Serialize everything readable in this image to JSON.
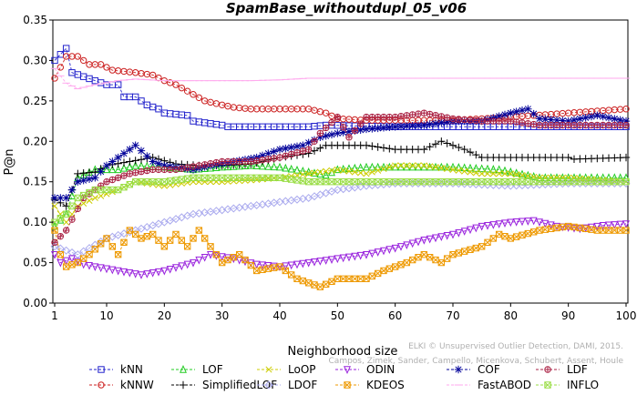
{
  "chart_data": {
    "type": "line",
    "title": "SpamBase_withoutdupl_05_v06",
    "xlabel": "Neighborhood size",
    "ylabel": "P@n",
    "xlim": [
      1,
      100
    ],
    "ylim": [
      0,
      0.35
    ],
    "x_ticks": [
      1,
      10,
      20,
      30,
      40,
      50,
      60,
      70,
      80,
      90,
      100
    ],
    "y_ticks": [
      "0.00",
      "0.05",
      "0.10",
      "0.15",
      "0.20",
      "0.25",
      "0.30",
      "0.35"
    ],
    "grid": false,
    "legend_position": "bottom",
    "credit": "ELKI © Unsupervised Outlier Detection, DAMI, 2015. Campos, Zimek, Sander, Campello, Micenkova, Schubert, Assent, Houle",
    "series": [
      {
        "name": "kNN",
        "color": "#2222cc",
        "marker": "square",
        "line": "dash",
        "points": [
          [
            1,
            0.3
          ],
          [
            3,
            0.315
          ],
          [
            4,
            0.285
          ],
          [
            6,
            0.28
          ],
          [
            8,
            0.275
          ],
          [
            10,
            0.27
          ],
          [
            12,
            0.27
          ],
          [
            13,
            0.255
          ],
          [
            15,
            0.255
          ],
          [
            17,
            0.245
          ],
          [
            19,
            0.24
          ],
          [
            20,
            0.235
          ],
          [
            24,
            0.232
          ],
          [
            25,
            0.225
          ],
          [
            30,
            0.22
          ],
          [
            31,
            0.218
          ],
          [
            45,
            0.218
          ],
          [
            48,
            0.22
          ],
          [
            60,
            0.218
          ],
          [
            100,
            0.218
          ]
        ]
      },
      {
        "name": "kNNW",
        "color": "#cc2222",
        "marker": "circle",
        "line": "dash",
        "points": [
          [
            1,
            0.278
          ],
          [
            3,
            0.305
          ],
          [
            5,
            0.305
          ],
          [
            7,
            0.295
          ],
          [
            9,
            0.295
          ],
          [
            11,
            0.288
          ],
          [
            15,
            0.285
          ],
          [
            18,
            0.282
          ],
          [
            20,
            0.275
          ],
          [
            22,
            0.27
          ],
          [
            24,
            0.262
          ],
          [
            27,
            0.25
          ],
          [
            30,
            0.245
          ],
          [
            32,
            0.242
          ],
          [
            35,
            0.24
          ],
          [
            45,
            0.24
          ],
          [
            48,
            0.235
          ],
          [
            50,
            0.228
          ],
          [
            55,
            0.226
          ],
          [
            70,
            0.226
          ],
          [
            80,
            0.23
          ],
          [
            90,
            0.235
          ],
          [
            100,
            0.24
          ]
        ]
      },
      {
        "name": "LOF",
        "color": "#22cc22",
        "marker": "triangle",
        "line": "dash",
        "points": [
          [
            1,
            0.095
          ],
          [
            3,
            0.11
          ],
          [
            5,
            0.155
          ],
          [
            8,
            0.165
          ],
          [
            12,
            0.165
          ],
          [
            15,
            0.17
          ],
          [
            20,
            0.168
          ],
          [
            25,
            0.165
          ],
          [
            30,
            0.168
          ],
          [
            35,
            0.17
          ],
          [
            40,
            0.168
          ],
          [
            45,
            0.162
          ],
          [
            48,
            0.158
          ],
          [
            50,
            0.165
          ],
          [
            55,
            0.168
          ],
          [
            60,
            0.168
          ],
          [
            70,
            0.168
          ],
          [
            78,
            0.165
          ],
          [
            85,
            0.155
          ],
          [
            90,
            0.155
          ],
          [
            100,
            0.155
          ]
        ]
      },
      {
        "name": "SimplifiedLOF",
        "color": "#000000",
        "marker": "plus",
        "line": "dash",
        "points": [
          [
            1,
            0.128
          ],
          [
            3,
            0.12
          ],
          [
            5,
            0.16
          ],
          [
            8,
            0.162
          ],
          [
            10,
            0.17
          ],
          [
            14,
            0.175
          ],
          [
            18,
            0.18
          ],
          [
            22,
            0.172
          ],
          [
            26,
            0.17
          ],
          [
            30,
            0.17
          ],
          [
            35,
            0.172
          ],
          [
            40,
            0.18
          ],
          [
            45,
            0.185
          ],
          [
            48,
            0.195
          ],
          [
            55,
            0.195
          ],
          [
            60,
            0.19
          ],
          [
            65,
            0.19
          ],
          [
            68,
            0.2
          ],
          [
            72,
            0.19
          ],
          [
            75,
            0.18
          ],
          [
            80,
            0.18
          ],
          [
            90,
            0.18
          ],
          [
            91,
            0.178
          ],
          [
            100,
            0.18
          ]
        ]
      },
      {
        "name": "LoOP",
        "color": "#cccc00",
        "marker": "x",
        "line": "dash",
        "points": [
          [
            1,
            0.12
          ],
          [
            3,
            0.1
          ],
          [
            5,
            0.12
          ],
          [
            8,
            0.13
          ],
          [
            12,
            0.14
          ],
          [
            15,
            0.15
          ],
          [
            20,
            0.145
          ],
          [
            25,
            0.15
          ],
          [
            30,
            0.15
          ],
          [
            35,
            0.152
          ],
          [
            40,
            0.155
          ],
          [
            45,
            0.16
          ],
          [
            50,
            0.165
          ],
          [
            55,
            0.16
          ],
          [
            60,
            0.17
          ],
          [
            65,
            0.17
          ],
          [
            70,
            0.165
          ],
          [
            75,
            0.16
          ],
          [
            80,
            0.16
          ],
          [
            85,
            0.155
          ],
          [
            90,
            0.155
          ],
          [
            100,
            0.15
          ]
        ]
      },
      {
        "name": "LDOF",
        "color": "#aaaaee",
        "marker": "diamond",
        "line": "dash",
        "points": [
          [
            1,
            0.07
          ],
          [
            3,
            0.065
          ],
          [
            5,
            0.06
          ],
          [
            10,
            0.08
          ],
          [
            15,
            0.09
          ],
          [
            20,
            0.1
          ],
          [
            25,
            0.11
          ],
          [
            30,
            0.115
          ],
          [
            35,
            0.12
          ],
          [
            40,
            0.125
          ],
          [
            45,
            0.13
          ],
          [
            50,
            0.14
          ],
          [
            55,
            0.145
          ],
          [
            60,
            0.148
          ],
          [
            70,
            0.148
          ],
          [
            80,
            0.145
          ],
          [
            90,
            0.148
          ],
          [
            100,
            0.148
          ]
        ]
      },
      {
        "name": "ODIN",
        "color": "#9922dd",
        "marker": "triangle-down",
        "line": "dash",
        "points": [
          [
            1,
            0.06
          ],
          [
            2,
            0.05
          ],
          [
            4,
            0.055
          ],
          [
            6,
            0.048
          ],
          [
            8,
            0.045
          ],
          [
            12,
            0.04
          ],
          [
            16,
            0.035
          ],
          [
            20,
            0.04
          ],
          [
            25,
            0.05
          ],
          [
            28,
            0.06
          ],
          [
            32,
            0.055
          ],
          [
            36,
            0.048
          ],
          [
            40,
            0.045
          ],
          [
            45,
            0.05
          ],
          [
            50,
            0.055
          ],
          [
            55,
            0.06
          ],
          [
            60,
            0.068
          ],
          [
            65,
            0.078
          ],
          [
            70,
            0.085
          ],
          [
            75,
            0.095
          ],
          [
            80,
            0.1
          ],
          [
            84,
            0.102
          ],
          [
            88,
            0.095
          ],
          [
            92,
            0.092
          ],
          [
            96,
            0.096
          ],
          [
            100,
            0.098
          ]
        ]
      },
      {
        "name": "KDEOS",
        "color": "#ee9900",
        "marker": "square-x",
        "line": "dash",
        "points": [
          [
            1,
            0.09
          ],
          [
            2,
            0.06
          ],
          [
            3,
            0.045
          ],
          [
            5,
            0.05
          ],
          [
            7,
            0.06
          ],
          [
            10,
            0.08
          ],
          [
            12,
            0.06
          ],
          [
            14,
            0.09
          ],
          [
            16,
            0.08
          ],
          [
            18,
            0.085
          ],
          [
            20,
            0.07
          ],
          [
            22,
            0.085
          ],
          [
            24,
            0.07
          ],
          [
            26,
            0.09
          ],
          [
            30,
            0.05
          ],
          [
            33,
            0.06
          ],
          [
            36,
            0.04
          ],
          [
            40,
            0.045
          ],
          [
            43,
            0.03
          ],
          [
            45,
            0.025
          ],
          [
            47,
            0.02
          ],
          [
            50,
            0.03
          ],
          [
            55,
            0.03
          ],
          [
            58,
            0.04
          ],
          [
            60,
            0.045
          ],
          [
            62,
            0.05
          ],
          [
            65,
            0.06
          ],
          [
            68,
            0.05
          ],
          [
            70,
            0.06
          ],
          [
            75,
            0.07
          ],
          [
            78,
            0.085
          ],
          [
            80,
            0.08
          ],
          [
            85,
            0.09
          ],
          [
            90,
            0.095
          ],
          [
            95,
            0.09
          ],
          [
            100,
            0.09
          ]
        ]
      },
      {
        "name": "COF",
        "color": "#000099",
        "marker": "star",
        "line": "dash",
        "points": [
          [
            1,
            0.13
          ],
          [
            3,
            0.13
          ],
          [
            5,
            0.15
          ],
          [
            8,
            0.155
          ],
          [
            10,
            0.17
          ],
          [
            12,
            0.18
          ],
          [
            14,
            0.19
          ],
          [
            15,
            0.195
          ],
          [
            18,
            0.175
          ],
          [
            20,
            0.17
          ],
          [
            25,
            0.165
          ],
          [
            28,
            0.17
          ],
          [
            32,
            0.175
          ],
          [
            36,
            0.18
          ],
          [
            40,
            0.19
          ],
          [
            44,
            0.195
          ],
          [
            47,
            0.205
          ],
          [
            50,
            0.21
          ],
          [
            55,
            0.215
          ],
          [
            60,
            0.218
          ],
          [
            65,
            0.22
          ],
          [
            70,
            0.225
          ],
          [
            75,
            0.225
          ],
          [
            80,
            0.235
          ],
          [
            83,
            0.24
          ],
          [
            85,
            0.228
          ],
          [
            90,
            0.225
          ],
          [
            95,
            0.232
          ],
          [
            100,
            0.225
          ]
        ]
      },
      {
        "name": "FastABOD",
        "color": "#ffaaee",
        "marker": "dash",
        "line": "dash",
        "points": [
          [
            1,
            0.29
          ],
          [
            3,
            0.272
          ],
          [
            5,
            0.265
          ],
          [
            8,
            0.27
          ],
          [
            12,
            0.275
          ],
          [
            15,
            0.277
          ],
          [
            20,
            0.275
          ],
          [
            25,
            0.275
          ],
          [
            30,
            0.275
          ],
          [
            35,
            0.275
          ],
          [
            40,
            0.276
          ],
          [
            45,
            0.278
          ],
          [
            50,
            0.278
          ],
          [
            60,
            0.278
          ],
          [
            70,
            0.278
          ],
          [
            80,
            0.278
          ],
          [
            90,
            0.278
          ],
          [
            100,
            0.278
          ]
        ]
      },
      {
        "name": "LDF",
        "color": "#aa2244",
        "marker": "circle-plus",
        "line": "dash",
        "points": [
          [
            1,
            0.075
          ],
          [
            3,
            0.09
          ],
          [
            6,
            0.13
          ],
          [
            10,
            0.15
          ],
          [
            14,
            0.16
          ],
          [
            18,
            0.165
          ],
          [
            22,
            0.165
          ],
          [
            26,
            0.17
          ],
          [
            30,
            0.175
          ],
          [
            35,
            0.175
          ],
          [
            40,
            0.18
          ],
          [
            45,
            0.19
          ],
          [
            47,
            0.21
          ],
          [
            50,
            0.23
          ],
          [
            52,
            0.205
          ],
          [
            55,
            0.23
          ],
          [
            60,
            0.23
          ],
          [
            65,
            0.235
          ],
          [
            70,
            0.228
          ],
          [
            75,
            0.225
          ],
          [
            80,
            0.225
          ],
          [
            85,
            0.22
          ],
          [
            90,
            0.22
          ],
          [
            100,
            0.22
          ]
        ]
      },
      {
        "name": "INFLO",
        "color": "#99dd44",
        "marker": "square-x",
        "line": "dash",
        "points": [
          [
            1,
            0.1
          ],
          [
            3,
            0.11
          ],
          [
            5,
            0.13
          ],
          [
            8,
            0.14
          ],
          [
            12,
            0.14
          ],
          [
            15,
            0.15
          ],
          [
            20,
            0.15
          ],
          [
            25,
            0.155
          ],
          [
            30,
            0.155
          ],
          [
            35,
            0.155
          ],
          [
            40,
            0.155
          ],
          [
            45,
            0.15
          ],
          [
            50,
            0.15
          ],
          [
            60,
            0.15
          ],
          [
            70,
            0.15
          ],
          [
            80,
            0.15
          ],
          [
            90,
            0.15
          ],
          [
            100,
            0.15
          ]
        ]
      }
    ]
  }
}
